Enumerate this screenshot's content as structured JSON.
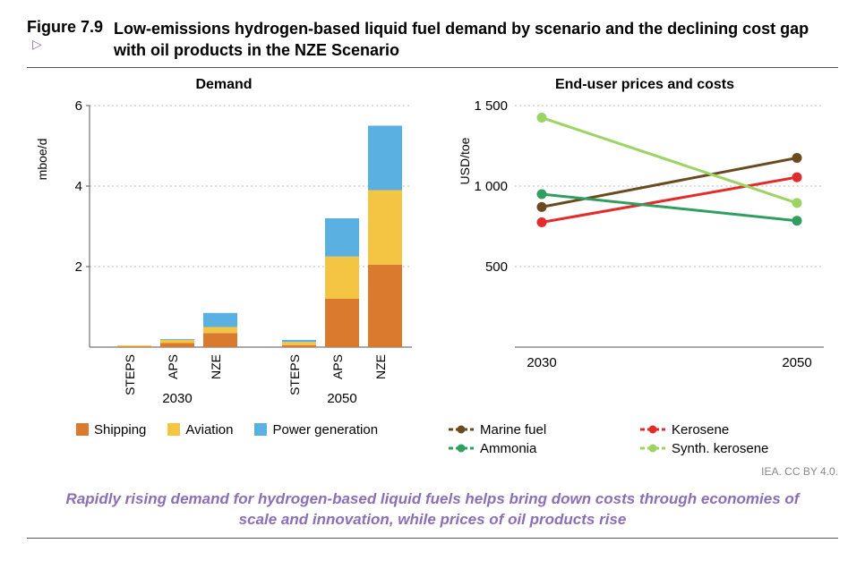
{
  "figure_number": "Figure 7.9",
  "figure_title": "Low-emissions hydrogen-based liquid fuel demand by scenario and the declining cost gap with oil products in the NZE Scenario",
  "attribution": "IEA. CC BY 4.0.",
  "caption": "Rapidly rising demand for hydrogen-based liquid fuels helps bring down costs through economies of scale and innovation, while prices of oil products rise",
  "colors": {
    "shipping": "#d97a2e",
    "aviation": "#f4c542",
    "power": "#5ab0e0",
    "grid": "#bbbbbb",
    "axis": "#555555",
    "marine_fuel": "#6b4a1f",
    "kerosene": "#e22b2b",
    "ammonia": "#2f9e5f",
    "synth_kero": "#9bd463",
    "accent": "#8a6fb8"
  },
  "demand_chart": {
    "title": "Demand",
    "ylabel": "mboe/d",
    "ylim": [
      0,
      6
    ],
    "ytick_step": 2,
    "groups": [
      "2030",
      "2050"
    ],
    "scenarios": [
      "STEPS",
      "APS",
      "NZE"
    ],
    "series_order": [
      "shipping",
      "aviation",
      "power"
    ],
    "series_labels": {
      "shipping": "Shipping",
      "aviation": "Aviation",
      "power": "Power generation"
    },
    "data": {
      "2030": {
        "STEPS": {
          "shipping": 0.02,
          "aviation": 0.02,
          "power": 0.0
        },
        "APS": {
          "shipping": 0.1,
          "aviation": 0.08,
          "power": 0.02
        },
        "NZE": {
          "shipping": 0.35,
          "aviation": 0.15,
          "power": 0.35
        }
      },
      "2050": {
        "STEPS": {
          "shipping": 0.05,
          "aviation": 0.08,
          "power": 0.05
        },
        "APS": {
          "shipping": 1.2,
          "aviation": 1.05,
          "power": 0.95
        },
        "NZE": {
          "shipping": 2.05,
          "aviation": 1.85,
          "power": 1.6
        }
      }
    }
  },
  "cost_chart": {
    "title": "End-user prices and costs",
    "ylabel": "USD/toe",
    "ylim": [
      0,
      1500
    ],
    "yticks": [
      500,
      1000,
      1500
    ],
    "xlabels": [
      "2030",
      "2050"
    ],
    "series": {
      "marine_fuel": {
        "label": "Marine fuel",
        "color_key": "marine_fuel",
        "values": [
          870,
          1175
        ]
      },
      "kerosene": {
        "label": "Kerosene",
        "color_key": "kerosene",
        "values": [
          775,
          1055
        ]
      },
      "ammonia": {
        "label": "Ammonia",
        "color_key": "ammonia",
        "values": [
          950,
          785
        ]
      },
      "synth_kero": {
        "label": "Synth. kerosene",
        "color_key": "synth_kero",
        "values": [
          1425,
          895
        ]
      }
    },
    "legend_order": [
      "marine_fuel",
      "kerosene",
      "ammonia",
      "synth_kero"
    ]
  }
}
